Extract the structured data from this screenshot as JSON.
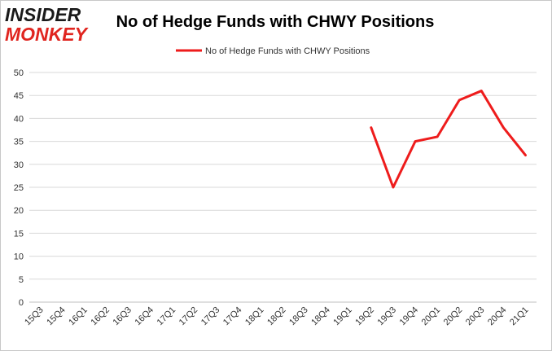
{
  "logo": {
    "line1": "INSIDER",
    "line2": "MONKEY"
  },
  "chart_data": {
    "type": "line",
    "title": "No of Hedge Funds with CHWY Positions",
    "categories": [
      "15Q3",
      "15Q4",
      "16Q1",
      "16Q2",
      "16Q3",
      "16Q4",
      "17Q1",
      "17Q2",
      "17Q3",
      "17Q4",
      "18Q1",
      "18Q2",
      "18Q3",
      "18Q4",
      "19Q1",
      "19Q2",
      "19Q3",
      "19Q4",
      "20Q1",
      "20Q2",
      "20Q3",
      "20Q4",
      "21Q1"
    ],
    "series": [
      {
        "name": "No of Hedge Funds with CHWY Positions",
        "color": "#ee1c1c",
        "values": [
          null,
          null,
          null,
          null,
          null,
          null,
          null,
          null,
          null,
          null,
          null,
          null,
          null,
          null,
          null,
          38,
          25,
          35,
          36,
          44,
          46,
          38,
          32
        ]
      }
    ],
    "yticks": [
      0,
      5,
      10,
      15,
      20,
      25,
      30,
      35,
      40,
      45,
      50
    ],
    "ylim": [
      0,
      50
    ],
    "grid": true,
    "legend": "top-center",
    "colors": {
      "line": "#ee1c1c",
      "grid": "#d9d9d9",
      "logo_dark": "#1a1a1a",
      "logo_red": "#e0251f"
    }
  }
}
